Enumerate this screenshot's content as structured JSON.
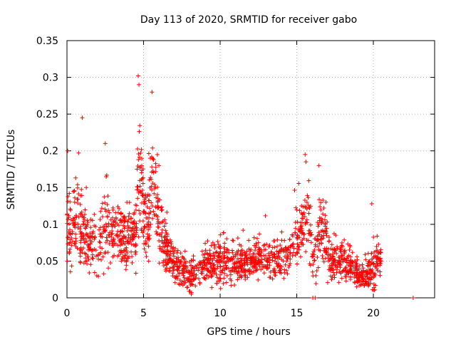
{
  "chart_data": {
    "type": "scatter",
    "title": "Day 113 of 2020, SRMTID for receiver gabo",
    "xlabel": "GPS time / hours",
    "ylabel": "SRMTID / TECUs",
    "xlim": [
      0,
      24
    ],
    "ylim": [
      0,
      0.35
    ],
    "grid": true,
    "marker": "+",
    "color": "#ff0000",
    "x_ticks": [
      0,
      5,
      10,
      15,
      20
    ],
    "x_tick_labels": [
      "0",
      "5",
      "10",
      "15",
      "20"
    ],
    "y_ticks": [
      0,
      0.05,
      0.1,
      0.15,
      0.2,
      0.25,
      0.3,
      0.35
    ],
    "y_tick_labels": [
      "0",
      "0.05",
      "0.1",
      "0.15",
      "0.2",
      "0.25",
      "0.3",
      "0.35"
    ],
    "envelope_hours": [
      0,
      0.3,
      0.7,
      1.0,
      1.5,
      2.0,
      2.5,
      3.0,
      3.5,
      4.0,
      4.5,
      4.75,
      5.0,
      5.3,
      5.65,
      6.0,
      6.5,
      7.0,
      7.5,
      8.0,
      8.5,
      9.0,
      9.5,
      10.0,
      10.5,
      11.0,
      11.5,
      12.0,
      12.5,
      13.0,
      13.5,
      14.0,
      14.5,
      15.0,
      15.4,
      15.7,
      16.0,
      16.3,
      16.6,
      17.0,
      17.5,
      18.0,
      18.5,
      19.0,
      19.5,
      20.0,
      20.5
    ],
    "envelope_median": [
      0.1,
      0.085,
      0.1,
      0.08,
      0.07,
      0.075,
      0.1,
      0.085,
      0.08,
      0.075,
      0.09,
      0.2,
      0.11,
      0.095,
      0.17,
      0.1,
      0.07,
      0.045,
      0.04,
      0.03,
      0.04,
      0.045,
      0.045,
      0.05,
      0.05,
      0.045,
      0.045,
      0.05,
      0.055,
      0.055,
      0.05,
      0.05,
      0.06,
      0.085,
      0.09,
      0.12,
      0.07,
      0.06,
      0.1,
      0.06,
      0.05,
      0.05,
      0.045,
      0.03,
      0.03,
      0.04,
      0.055
    ],
    "envelope_spread": [
      0.04,
      0.04,
      0.05,
      0.04,
      0.03,
      0.04,
      0.05,
      0.03,
      0.03,
      0.03,
      0.04,
      0.07,
      0.04,
      0.04,
      0.06,
      0.04,
      0.03,
      0.02,
      0.02,
      0.02,
      0.02,
      0.02,
      0.02,
      0.03,
      0.02,
      0.02,
      0.02,
      0.02,
      0.02,
      0.02,
      0.02,
      0.02,
      0.02,
      0.03,
      0.03,
      0.04,
      0.03,
      0.03,
      0.04,
      0.03,
      0.02,
      0.02,
      0.02,
      0.015,
      0.015,
      0.03,
      0.02
    ],
    "points_per_hour": 90,
    "extra_points": [
      {
        "x": 16.05,
        "y": 0.0
      },
      {
        "x": 16.2,
        "y": 0.0
      },
      {
        "x": 22.6,
        "y": 0.0
      },
      {
        "x": 4.65,
        "y": 0.302
      },
      {
        "x": 4.7,
        "y": 0.29
      },
      {
        "x": 5.55,
        "y": 0.28
      },
      {
        "x": 1.0,
        "y": 0.245
      },
      {
        "x": 2.5,
        "y": 0.21
      },
      {
        "x": 15.6,
        "y": 0.185
      },
      {
        "x": 16.45,
        "y": 0.18
      },
      {
        "x": 0.05,
        "y": 0.2
      },
      {
        "x": 19.9,
        "y": 0.128
      }
    ]
  }
}
